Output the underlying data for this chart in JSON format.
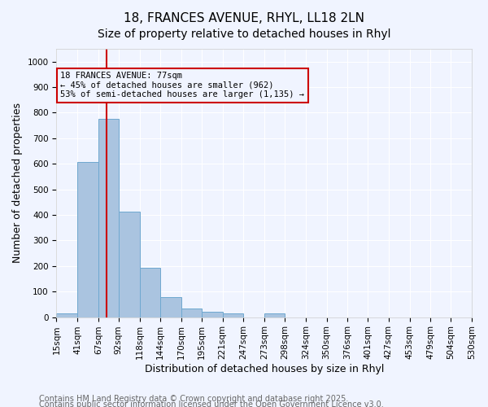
{
  "title1": "18, FRANCES AVENUE, RHYL, LL18 2LN",
  "title2": "Size of property relative to detached houses in Rhyl",
  "xlabel": "Distribution of detached houses by size in Rhyl",
  "ylabel": "Number of detached properties",
  "bar_color": "#aac4e0",
  "bar_edge_color": "#6fa8d0",
  "background_color": "#f0f4ff",
  "grid_color": "#ffffff",
  "bin_labels": [
    "15sqm",
    "41sqm",
    "67sqm",
    "92sqm",
    "118sqm",
    "144sqm",
    "170sqm",
    "195sqm",
    "221sqm",
    "247sqm",
    "273sqm",
    "298sqm",
    "324sqm",
    "350sqm",
    "376sqm",
    "401sqm",
    "427sqm",
    "453sqm",
    "479sqm",
    "504sqm",
    "530sqm"
  ],
  "bin_edges": [
    15,
    41,
    67,
    92,
    118,
    144,
    170,
    195,
    221,
    247,
    273,
    298,
    324,
    350,
    376,
    401,
    427,
    453,
    479,
    504,
    530
  ],
  "bar_heights": [
    15,
    608,
    775,
    412,
    192,
    77,
    35,
    20,
    15,
    0,
    15,
    0,
    0,
    0,
    0,
    0,
    0,
    0,
    0,
    0
  ],
  "property_size": 77,
  "vline_color": "#cc0000",
  "annotation_text": "18 FRANCES AVENUE: 77sqm\n← 45% of detached houses are smaller (962)\n53% of semi-detached houses are larger (1,135) →",
  "annotation_box_color": "#cc0000",
  "ylim": [
    0,
    1050
  ],
  "yticks": [
    0,
    100,
    200,
    300,
    400,
    500,
    600,
    700,
    800,
    900,
    1000
  ],
  "footnote1": "Contains HM Land Registry data © Crown copyright and database right 2025.",
  "footnote2": "Contains public sector information licensed under the Open Government Licence v3.0.",
  "title_fontsize": 11,
  "axis_fontsize": 9,
  "tick_fontsize": 7.5,
  "footnote_fontsize": 7
}
